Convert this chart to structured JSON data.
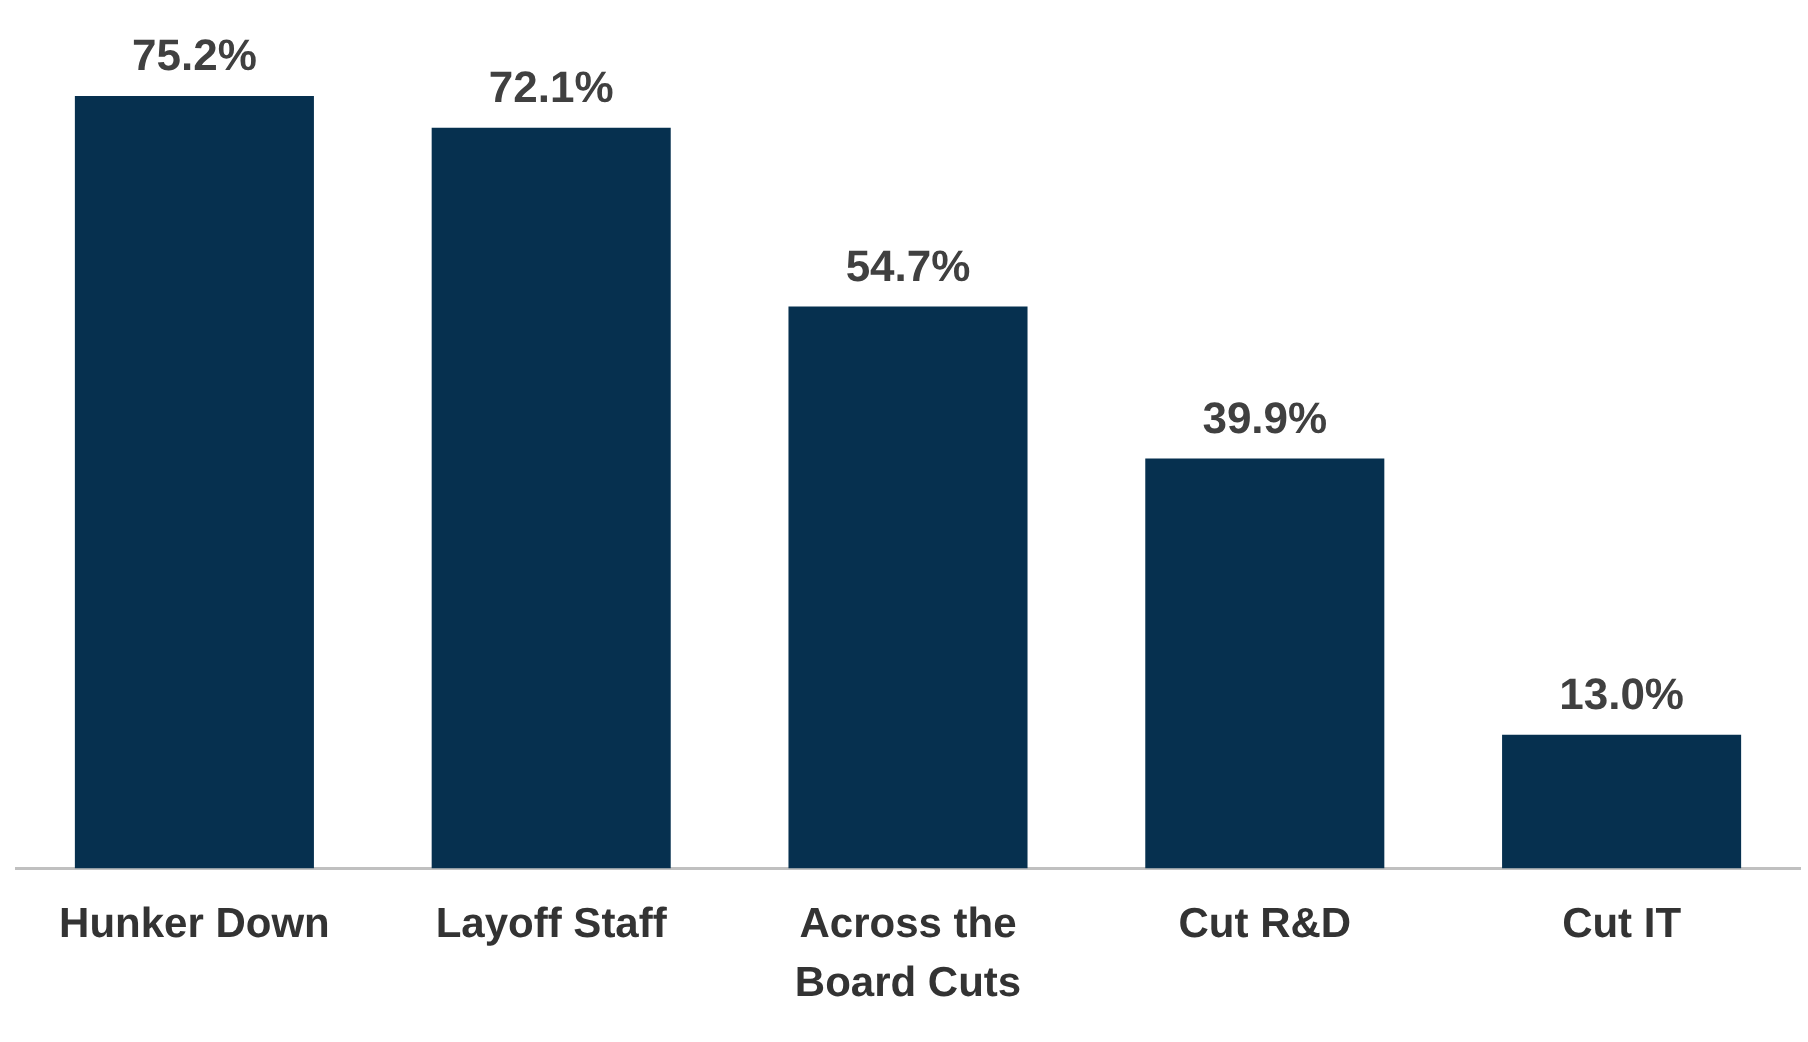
{
  "chart_data": {
    "type": "bar",
    "categories": [
      "Hunker Down",
      "Layoff Staff",
      "Across the Board Cuts",
      "Cut R&D",
      "Cut IT"
    ],
    "values": [
      75.2,
      72.1,
      54.7,
      39.9,
      13.0
    ],
    "value_labels": [
      "75.2%",
      "72.1%",
      "54.7%",
      "39.9%",
      "13.0%"
    ],
    "color": "#06304f",
    "grid": false,
    "legend": false
  }
}
